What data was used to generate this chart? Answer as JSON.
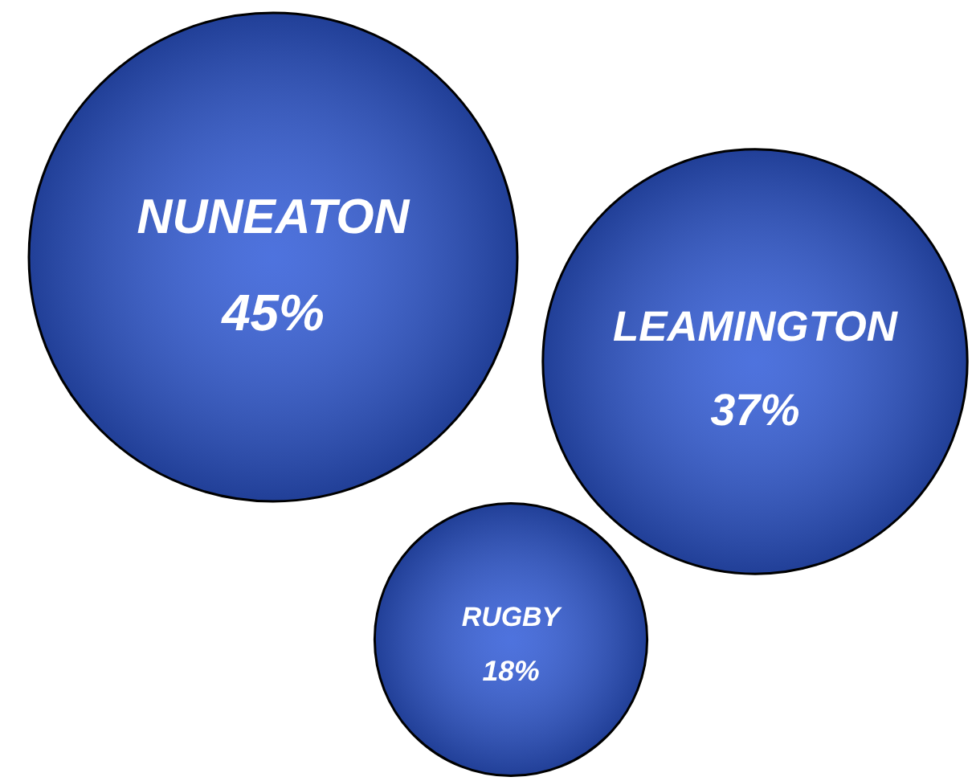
{
  "chart_data": {
    "type": "other",
    "categories": [
      "NUNEATON",
      "LEAMINGTON",
      "RUGBY"
    ],
    "values": [
      45,
      37,
      18
    ],
    "value_labels": [
      "45%",
      "37%",
      "18%"
    ],
    "colors": [
      "#2f5ad8",
      "#2f5ad8",
      "#2f5ad8"
    ]
  }
}
